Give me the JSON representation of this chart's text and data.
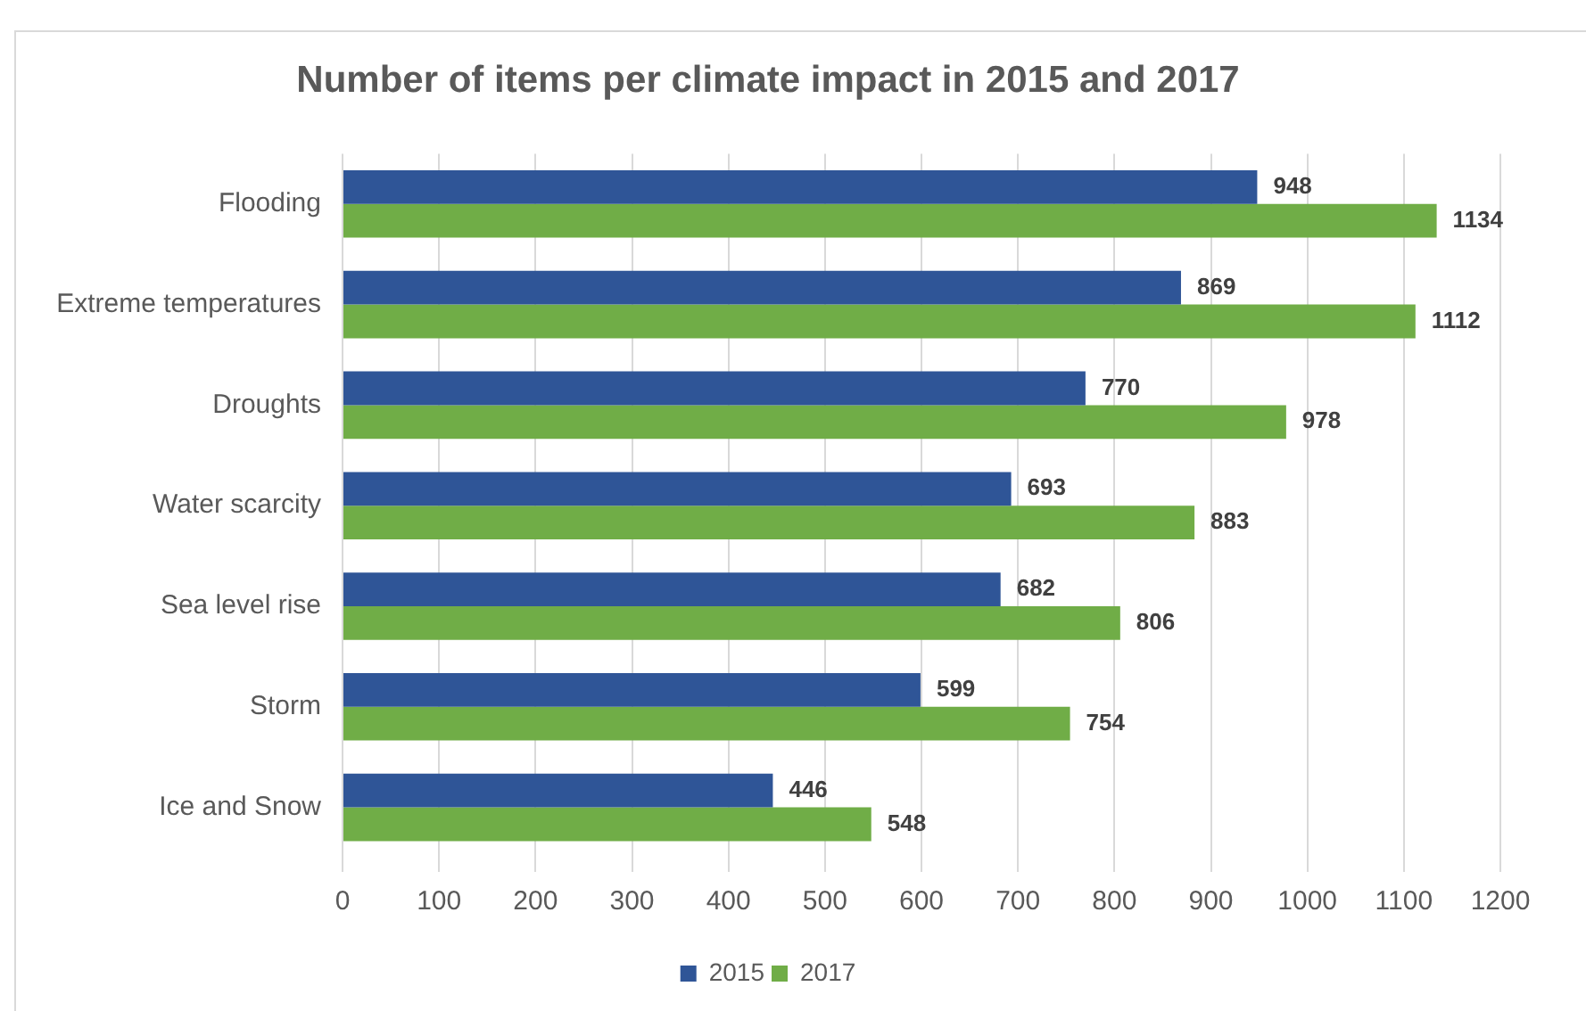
{
  "chart_data": {
    "type": "bar",
    "orientation": "horizontal",
    "title": "Number of items per climate impact in 2015 and 2017",
    "categories": [
      "Flooding",
      "Extreme temperatures",
      "Droughts",
      "Water scarcity",
      "Sea level rise",
      "Storm",
      "Ice and Snow"
    ],
    "series": [
      {
        "name": "2015",
        "color": "#2f5597",
        "values": [
          948,
          869,
          770,
          693,
          682,
          599,
          446
        ]
      },
      {
        "name": "2017",
        "color": "#70ad47",
        "values": [
          1134,
          1112,
          978,
          883,
          806,
          754,
          548
        ]
      }
    ],
    "xlim": [
      0,
      1200
    ],
    "xticks": [
      0,
      100,
      200,
      300,
      400,
      500,
      600,
      700,
      800,
      900,
      1000,
      1100,
      1200
    ],
    "grid": "x",
    "legend": "bottom",
    "data_labels": true
  }
}
